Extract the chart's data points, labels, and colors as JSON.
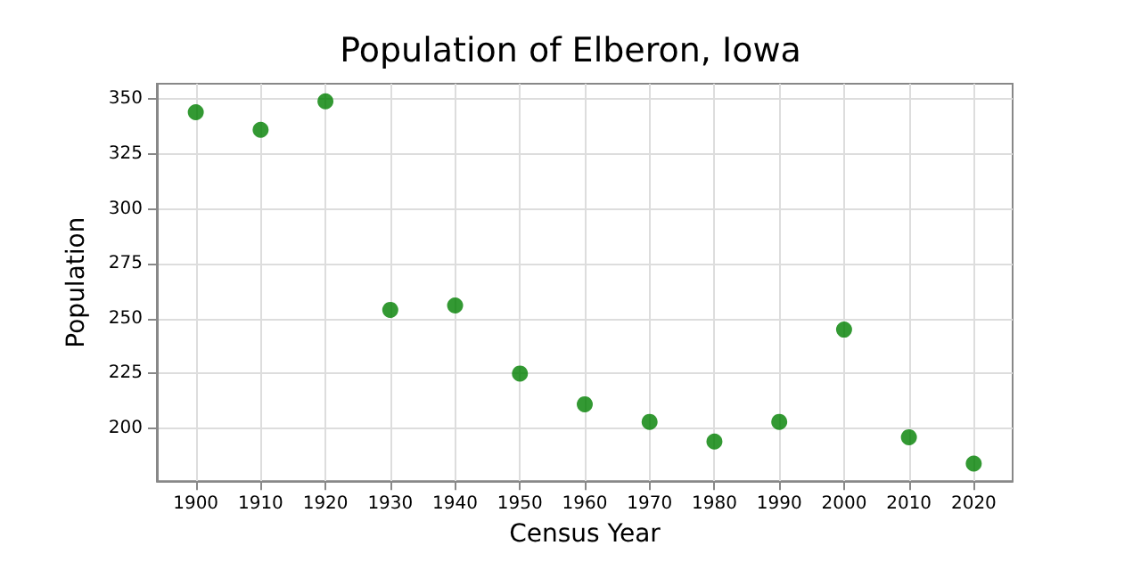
{
  "chart_data": {
    "type": "scatter",
    "title": "Population of Elberon, Iowa",
    "xlabel": "Census Year",
    "ylabel": "Population",
    "x": [
      1900,
      1910,
      1920,
      1930,
      1940,
      1950,
      1960,
      1970,
      1980,
      1990,
      2000,
      2010,
      2020
    ],
    "series": [
      {
        "color": "#008000",
        "values": [
          344,
          336,
          349,
          254,
          256,
          225,
          211,
          203,
          194,
          203,
          245,
          196,
          184
        ]
      }
    ],
    "xlim": [
      1894,
      2026
    ],
    "xticks": [
      1900,
      1910,
      1920,
      1930,
      1940,
      1950,
      1960,
      1970,
      1980,
      1990,
      2000,
      2010,
      2020
    ],
    "ylim": [
      176,
      357
    ],
    "yticks": [
      200,
      225,
      250,
      275,
      300,
      325,
      350
    ],
    "grid": true,
    "marker": "circle"
  }
}
